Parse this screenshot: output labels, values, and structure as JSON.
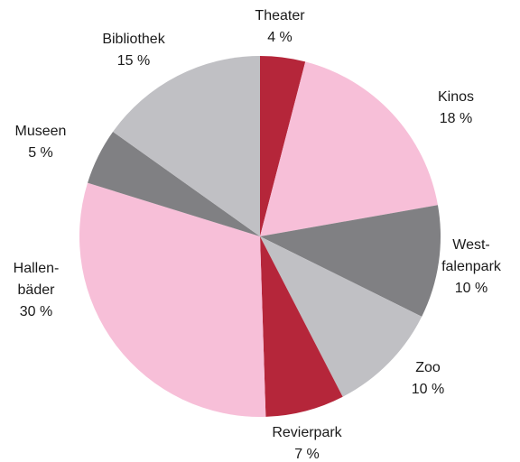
{
  "chart_data": {
    "type": "pie",
    "categories": [
      "Theater",
      "Kinos",
      "West-\nfalenpark",
      "Zoo",
      "Revierpark",
      "Hallen-\nbäder",
      "Museen",
      "Bibliothek"
    ],
    "values": [
      4,
      18,
      10,
      10,
      7,
      30,
      5,
      15
    ],
    "value_labels": [
      "4 %",
      "18 %",
      "10 %",
      "10 %",
      "7 %",
      "30 %",
      "5 %",
      "15 %"
    ],
    "colors": [
      "#b5263a",
      "#f7bfd8",
      "#808083",
      "#c0c0c4",
      "#b5263a",
      "#f7bfd8",
      "#808083",
      "#c0c0c4"
    ]
  }
}
